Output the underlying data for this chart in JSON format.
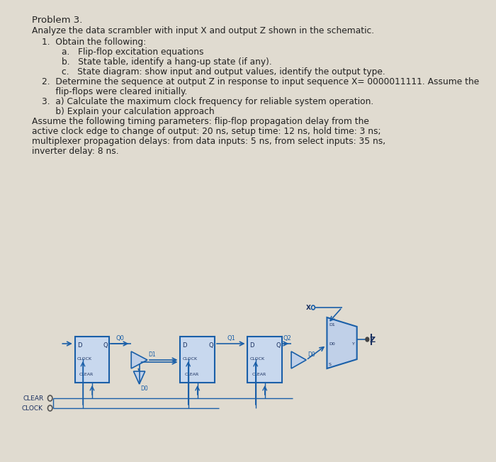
{
  "bg_color": "#e0dbd0",
  "title_text": "Problem 3.",
  "subtitle_text": "Analyze the data scrambler with input X and output Z shown in the schematic.",
  "body_lines": [
    {
      "indent": 1,
      "text": "1.  Obtain the following:"
    },
    {
      "indent": 2,
      "text": "a.   Flip-flop excitation equations"
    },
    {
      "indent": 2,
      "text": "b.   State table, identify a hang-up state (if any)."
    },
    {
      "indent": 2,
      "text": "c.   State diagram: show input and output values, identify the output type."
    },
    {
      "indent": 1,
      "text": "2.  Determine the sequence at output Z in response to input sequence X= 0000011111. Assume the"
    },
    {
      "indent": 1,
      "text": "     flip-flops were cleared initially."
    },
    {
      "indent": 1,
      "text": "3.  a) Calculate the maximum clock frequency for reliable system operation."
    },
    {
      "indent": 1,
      "text": "     b) Explain your calculation approach"
    },
    {
      "indent": 0,
      "text": "Assume the following timing parameters: flip-flop propagation delay from the"
    },
    {
      "indent": 0,
      "text": "active clock edge to change of output: 20 ns, setup time: 12 ns, hold time: 3 ns;"
    },
    {
      "indent": 0,
      "text": "multiplexer propagation delays: from data inputs: 5 ns, from select inputs: 35 ns,"
    },
    {
      "indent": 0,
      "text": "inverter delay: 8 ns."
    }
  ],
  "wire_color": "#1a5fa8",
  "box_color": "#1a5fa8",
  "box_fill": "#c8d8ee",
  "mux_fill": "#c0d0e8",
  "text_color": "#1a3060",
  "font_size_title": 9.5,
  "font_size_body": 8.8,
  "font_size_circuit": 6.0
}
